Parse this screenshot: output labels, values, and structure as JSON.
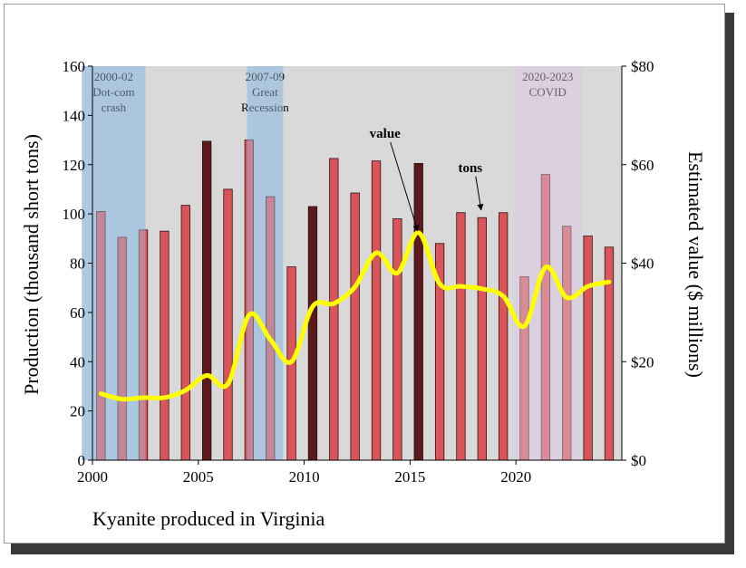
{
  "chart_data": {
    "type": "bar+line",
    "caption": "Kyanite produced in Virginia",
    "years": [
      2000,
      2001,
      2002,
      2003,
      2004,
      2005,
      2006,
      2007,
      2008,
      2009,
      2010,
      2011,
      2012,
      2013,
      2014,
      2015,
      2016,
      2017,
      2018,
      2019,
      2020,
      2021,
      2022,
      2023,
      2024
    ],
    "series": [
      {
        "name": "tons",
        "axis": "left",
        "unit": "thousand short tons",
        "values": [
          101,
          90.5,
          93.5,
          93,
          103.5,
          129.5,
          110,
          130,
          107,
          78.5,
          103,
          122.5,
          108.5,
          121.5,
          98,
          120.5,
          88,
          100.5,
          98.5,
          100.5,
          74.5,
          116,
          95,
          91,
          86.5
        ]
      },
      {
        "name": "value",
        "axis": "right",
        "unit": "$ millions",
        "values": [
          13.5,
          12.4,
          12.7,
          12.7,
          14.2,
          17.2,
          15.5,
          29.5,
          24.5,
          20.0,
          31.2,
          31.8,
          35.2,
          42.1,
          38.0,
          46.2,
          35.8,
          35.3,
          34.8,
          33.3,
          27.2,
          39.2,
          33.0,
          35.3,
          36.2
        ]
      }
    ],
    "bar_highlight_years": [
      2005,
      2010,
      2015
    ],
    "yleft": {
      "label": "Production (thousand short tons)",
      "lim": [
        0,
        160
      ],
      "ticks": [
        0,
        20,
        40,
        60,
        80,
        100,
        120,
        140,
        160
      ],
      "tick_labels": [
        "0",
        "20",
        "40",
        "60",
        "80",
        "100",
        "120",
        "140",
        "160"
      ]
    },
    "yright": {
      "label": "Estimated value ($ millions)",
      "lim": [
        0,
        80
      ],
      "ticks": [
        0,
        20,
        40,
        60,
        80
      ],
      "tick_labels": [
        "$0",
        "$20",
        "$40",
        "$60",
        "$80"
      ]
    },
    "xaxis": {
      "lim": [
        2000,
        2025
      ],
      "ticks": [
        2000,
        2005,
        2010,
        2015,
        2020
      ],
      "tick_labels": [
        "2000",
        "2005",
        "2010",
        "2015",
        "2020"
      ]
    },
    "periods": [
      {
        "start": 1999.5,
        "end": 2002.5,
        "lines": [
          "2000-02",
          "Dot-com",
          "crash"
        ],
        "color": "#a8c4e0"
      },
      {
        "start": 2007.3,
        "end": 2009.0,
        "lines": [
          "2007-09",
          "Great",
          "Recession"
        ],
        "color": "#a8c4e0"
      },
      {
        "start": 2019.9,
        "end": 2023.1,
        "lines": [
          "2020-2023",
          "COVID"
        ],
        "color": "#d9cfe0"
      }
    ],
    "annotations": [
      {
        "text": "value",
        "target_year": 2015,
        "target_value": 46.0,
        "target_axis": "right"
      },
      {
        "text": "tons",
        "target_year": 2018,
        "target_value": 100.5,
        "target_axis": "left"
      }
    ],
    "colors": {
      "plot_bg": "#d9d9d9",
      "bar": "#d9555a",
      "bar_dark": "#5c1a1e",
      "bar_edge": "#2a1012",
      "line": "#ffff00"
    }
  }
}
